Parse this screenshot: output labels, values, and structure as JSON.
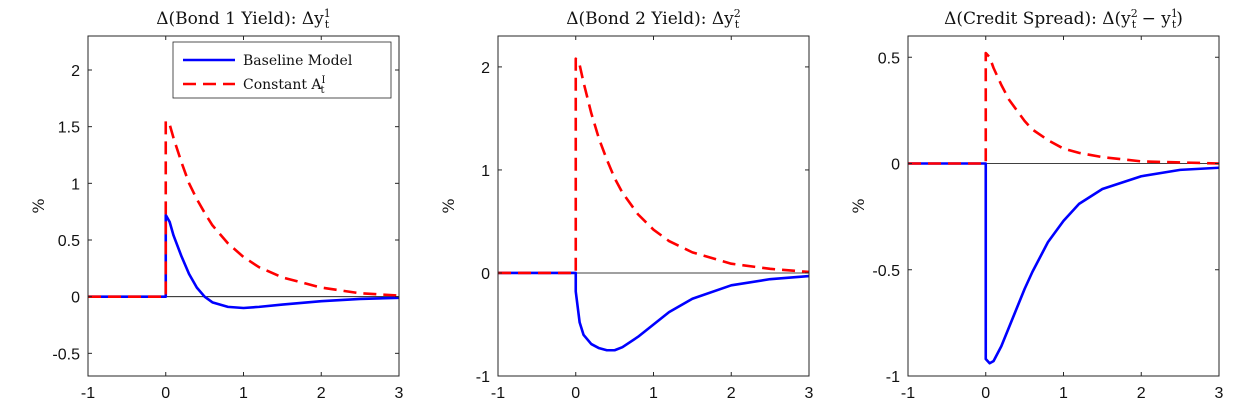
{
  "chart_data": [
    {
      "type": "line",
      "title": "Δ(Bond 1 Yield): Δy",
      "title_sup": "1",
      "title_sub": "t",
      "xlabel": "",
      "ylabel": "%",
      "xlim": [
        -1,
        3
      ],
      "ylim": [
        -0.7,
        2.3
      ],
      "xticks": [
        -1,
        0,
        1,
        2,
        3
      ],
      "xtick_labels": [
        "-1",
        "0",
        "1",
        "2",
        "3"
      ],
      "yticks": [
        -0.5,
        0,
        0.5,
        1,
        1.5,
        2
      ],
      "ytick_labels": [
        "-0.5",
        "0",
        "0.5",
        "1",
        "1.5",
        "2"
      ],
      "legend": {
        "placement": "top-right",
        "entries": [
          {
            "label": "Baseline Model",
            "label_sup": "",
            "label_sub": ""
          },
          {
            "label": "Constant A",
            "label_sup": "I",
            "label_sub": "t"
          }
        ]
      },
      "series": [
        {
          "name": "Baseline Model",
          "color": "#0000ff",
          "dash": "solid",
          "x": [
            -1,
            -0.5,
            0,
            0,
            0.05,
            0.1,
            0.2,
            0.3,
            0.4,
            0.5,
            0.6,
            0.8,
            1.0,
            1.2,
            1.5,
            2.0,
            2.5,
            3.0
          ],
          "y": [
            0,
            0,
            0,
            0.72,
            0.66,
            0.54,
            0.36,
            0.2,
            0.08,
            0.0,
            -0.05,
            -0.09,
            -0.1,
            -0.09,
            -0.07,
            -0.04,
            -0.02,
            -0.01
          ]
        },
        {
          "name": "Constant A",
          "color": "#ff0000",
          "dash": "dashed",
          "x": [
            -1,
            -0.5,
            0,
            0,
            0.05,
            0.1,
            0.2,
            0.3,
            0.4,
            0.5,
            0.6,
            0.8,
            1.0,
            1.2,
            1.5,
            2.0,
            2.5,
            3.0
          ],
          "y": [
            0,
            0,
            0,
            1.55,
            1.52,
            1.4,
            1.19,
            1.0,
            0.86,
            0.74,
            0.63,
            0.47,
            0.35,
            0.26,
            0.17,
            0.08,
            0.03,
            0.01
          ]
        }
      ]
    },
    {
      "type": "line",
      "title": "Δ(Bond 2 Yield): Δy",
      "title_sup": "2",
      "title_sub": "t",
      "xlabel": "",
      "ylabel": "%",
      "xlim": [
        -1,
        3
      ],
      "ylim": [
        -1,
        2.3
      ],
      "xticks": [
        -1,
        0,
        1,
        2,
        3
      ],
      "xtick_labels": [
        "-1",
        "0",
        "1",
        "2",
        "3"
      ],
      "yticks": [
        -1,
        0,
        1,
        2
      ],
      "ytick_labels": [
        "-1",
        "0",
        "1",
        "2"
      ],
      "series": [
        {
          "name": "",
          "color": "#0000ff",
          "dash": "solid",
          "x": [
            -1,
            -0.5,
            0,
            0,
            0.05,
            0.1,
            0.2,
            0.3,
            0.4,
            0.5,
            0.6,
            0.8,
            1.0,
            1.2,
            1.5,
            2.0,
            2.5,
            3.0
          ],
          "y": [
            0,
            0,
            0,
            -0.18,
            -0.48,
            -0.6,
            -0.69,
            -0.73,
            -0.75,
            -0.75,
            -0.72,
            -0.62,
            -0.5,
            -0.38,
            -0.25,
            -0.12,
            -0.06,
            -0.03
          ]
        },
        {
          "name": "",
          "color": "#ff0000",
          "dash": "dashed",
          "x": [
            -1,
            -0.5,
            0,
            0,
            0.05,
            0.1,
            0.2,
            0.3,
            0.4,
            0.5,
            0.6,
            0.8,
            1.0,
            1.2,
            1.5,
            2.0,
            2.5,
            3.0
          ],
          "y": [
            0,
            0,
            0,
            2.08,
            2.02,
            1.85,
            1.55,
            1.3,
            1.1,
            0.92,
            0.78,
            0.57,
            0.42,
            0.31,
            0.2,
            0.09,
            0.04,
            0.01
          ]
        }
      ]
    },
    {
      "type": "line",
      "title": "Δ(Credit Spread): Δ(y",
      "title_sup": "2",
      "title_sub": "t",
      "title_mid": " − y",
      "title_sup2": "1",
      "title_sub2": "t",
      "title_end": ")",
      "xlabel": "",
      "ylabel": "%",
      "xlim": [
        -1,
        3
      ],
      "ylim": [
        -1,
        0.6
      ],
      "xticks": [
        -1,
        0,
        1,
        2,
        3
      ],
      "xtick_labels": [
        "-1",
        "0",
        "1",
        "2",
        "3"
      ],
      "yticks": [
        -1,
        -0.5,
        0,
        0.5
      ],
      "ytick_labels": [
        "-1",
        "-0.5",
        "0",
        "0.5"
      ],
      "series": [
        {
          "name": "",
          "color": "#0000ff",
          "dash": "solid",
          "x": [
            -1,
            -0.5,
            0,
            0,
            0.05,
            0.1,
            0.2,
            0.3,
            0.4,
            0.5,
            0.6,
            0.8,
            1.0,
            1.2,
            1.5,
            2.0,
            2.5,
            3.0
          ],
          "y": [
            0,
            0,
            0,
            -0.92,
            -0.94,
            -0.93,
            -0.86,
            -0.77,
            -0.68,
            -0.59,
            -0.51,
            -0.37,
            -0.27,
            -0.19,
            -0.12,
            -0.06,
            -0.03,
            -0.02
          ]
        },
        {
          "name": "",
          "color": "#ff0000",
          "dash": "dashed",
          "x": [
            -1,
            -0.5,
            0,
            0,
            0.05,
            0.1,
            0.2,
            0.3,
            0.4,
            0.5,
            0.6,
            0.8,
            1.0,
            1.2,
            1.5,
            2.0,
            2.5,
            3.0
          ],
          "y": [
            0,
            0,
            0,
            0.52,
            0.5,
            0.45,
            0.37,
            0.3,
            0.25,
            0.2,
            0.16,
            0.11,
            0.07,
            0.05,
            0.03,
            0.01,
            0.005,
            0.0
          ]
        }
      ]
    }
  ]
}
